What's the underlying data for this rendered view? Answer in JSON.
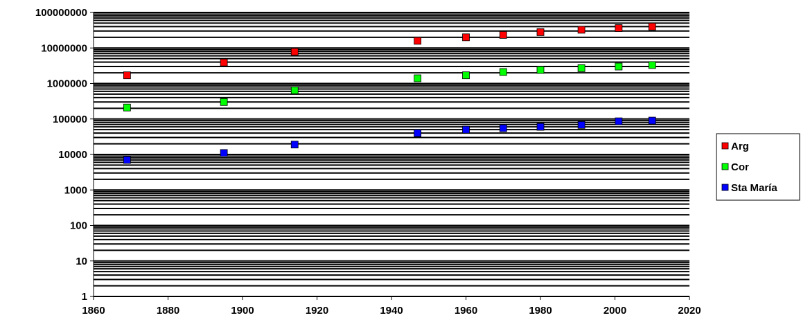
{
  "chart_data": {
    "type": "scatter",
    "title": "",
    "xlabel": "",
    "ylabel": "",
    "xlim": [
      1860,
      2020
    ],
    "ylim": [
      1,
      100000000
    ],
    "yscale": "log",
    "x_ticks": [
      "1860",
      "1880",
      "1900",
      "1920",
      "1940",
      "1960",
      "1980",
      "2000",
      "2020"
    ],
    "y_ticks": [
      "1",
      "10",
      "100",
      "1000",
      "10000",
      "100000",
      "1000000",
      "10000000",
      "100000000"
    ],
    "grid": "horizontal major and minor lines",
    "legend_position": "right",
    "series": [
      {
        "name": "Arg",
        "color": "#ff0000",
        "points": [
          {
            "x": 1869,
            "y": 1700000
          },
          {
            "x": 1895,
            "y": 3900000
          },
          {
            "x": 1914,
            "y": 7800000
          },
          {
            "x": 1947,
            "y": 15900000
          },
          {
            "x": 1960,
            "y": 20000000
          },
          {
            "x": 1970,
            "y": 23300000
          },
          {
            "x": 1980,
            "y": 27900000
          },
          {
            "x": 1991,
            "y": 32600000
          },
          {
            "x": 2001,
            "y": 36300000
          },
          {
            "x": 2010,
            "y": 40100000
          }
        ]
      },
      {
        "name": "Cor",
        "color": "#00ff00",
        "points": [
          {
            "x": 1869,
            "y": 210000
          },
          {
            "x": 1895,
            "y": 300000
          },
          {
            "x": 1914,
            "y": 640000
          },
          {
            "x": 1947,
            "y": 1400000
          },
          {
            "x": 1960,
            "y": 1700000
          },
          {
            "x": 1970,
            "y": 2100000
          },
          {
            "x": 1980,
            "y": 2400000
          },
          {
            "x": 1991,
            "y": 2700000
          },
          {
            "x": 2001,
            "y": 3000000
          },
          {
            "x": 2010,
            "y": 3300000
          }
        ]
      },
      {
        "name": "Sta María",
        "color": "#0000ff",
        "points": [
          {
            "x": 1869,
            "y": 7000
          },
          {
            "x": 1895,
            "y": 11000
          },
          {
            "x": 1914,
            "y": 19000
          },
          {
            "x": 1947,
            "y": 40000
          },
          {
            "x": 1960,
            "y": 50000
          },
          {
            "x": 1970,
            "y": 55000
          },
          {
            "x": 1980,
            "y": 60000
          },
          {
            "x": 1991,
            "y": 68000
          },
          {
            "x": 2001,
            "y": 86000
          },
          {
            "x": 2010,
            "y": 90000
          }
        ]
      }
    ]
  }
}
